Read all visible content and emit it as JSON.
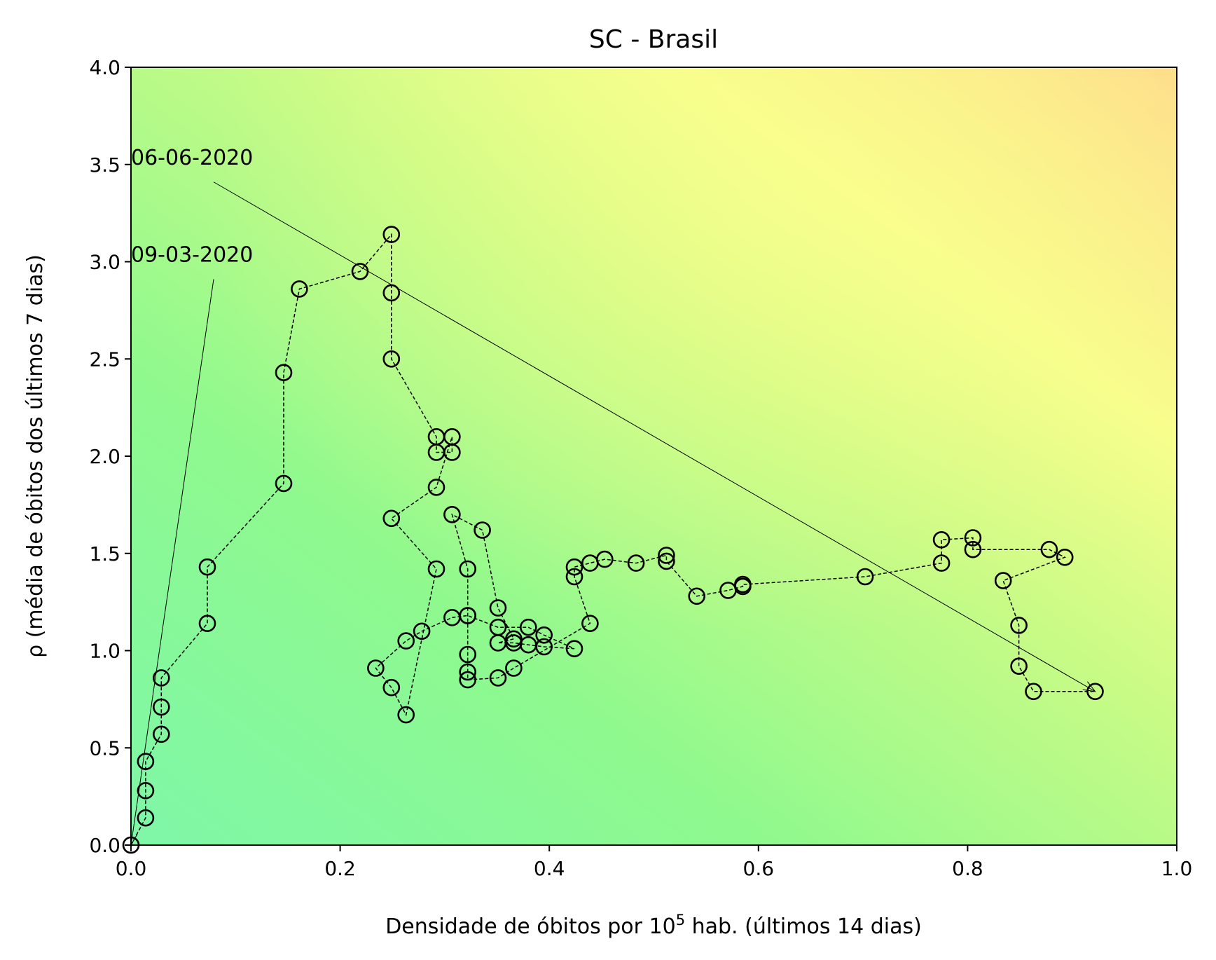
{
  "chart_data": {
    "type": "scatter",
    "title": "SC - Brasil",
    "xlabel_main": "Densidade de óbitos por 10",
    "xlabel_sup": "5",
    "xlabel_rest": " hab. (últimos 14 dias)",
    "ylabel": "ρ (média de óbitos dos últimos 7 dias)",
    "xlim": [
      0.0,
      1.0
    ],
    "ylim": [
      0.0,
      4.0
    ],
    "xticks": [
      0.0,
      0.2,
      0.4,
      0.6,
      0.8,
      1.0
    ],
    "xtick_labels": [
      "0.0",
      "0.2",
      "0.4",
      "0.6",
      "0.8",
      "1.0"
    ],
    "yticks": [
      0.0,
      0.5,
      1.0,
      1.5,
      2.0,
      2.5,
      3.0,
      3.5,
      4.0
    ],
    "ytick_labels": [
      "0.0",
      "0.5",
      "1.0",
      "1.5",
      "2.0",
      "2.5",
      "3.0",
      "3.5",
      "4.0"
    ],
    "grid": false,
    "background": "green-yellow-orange gradient (low values green, high values orange)",
    "series": [
      {
        "marker": "open circle",
        "line": "dashed",
        "color": "#000000",
        "points": [
          [
            0.0,
            0.0
          ],
          [
            0.014,
            0.14
          ],
          [
            0.014,
            0.28
          ],
          [
            0.014,
            0.43
          ],
          [
            0.029,
            0.57
          ],
          [
            0.029,
            0.71
          ],
          [
            0.029,
            0.86
          ],
          [
            0.073,
            1.14
          ],
          [
            0.073,
            1.43
          ],
          [
            0.146,
            1.86
          ],
          [
            0.146,
            2.43
          ],
          [
            0.161,
            2.86
          ],
          [
            0.219,
            2.95
          ],
          [
            0.249,
            3.14
          ],
          [
            0.249,
            2.84
          ],
          [
            0.249,
            2.5
          ],
          [
            0.292,
            2.1
          ],
          [
            0.292,
            2.02
          ],
          [
            0.307,
            2.02
          ],
          [
            0.307,
            2.1
          ],
          [
            0.292,
            1.84
          ],
          [
            0.249,
            1.68
          ],
          [
            0.292,
            1.42
          ],
          [
            0.263,
            0.67
          ],
          [
            0.249,
            0.81
          ],
          [
            0.234,
            0.91
          ],
          [
            0.263,
            1.05
          ],
          [
            0.278,
            1.1
          ],
          [
            0.307,
            1.17
          ],
          [
            0.322,
            1.18
          ],
          [
            0.351,
            1.12
          ],
          [
            0.38,
            1.12
          ],
          [
            0.395,
            1.08
          ],
          [
            0.424,
            1.01
          ],
          [
            0.395,
            1.02
          ],
          [
            0.38,
            1.03
          ],
          [
            0.366,
            1.04
          ],
          [
            0.351,
            1.04
          ],
          [
            0.366,
            1.06
          ],
          [
            0.351,
            1.22
          ],
          [
            0.336,
            1.62
          ],
          [
            0.307,
            1.7
          ],
          [
            0.322,
            1.42
          ],
          [
            0.322,
            1.18
          ],
          [
            0.322,
            0.98
          ],
          [
            0.322,
            0.89
          ],
          [
            0.322,
            0.85
          ],
          [
            0.351,
            0.86
          ],
          [
            0.366,
            0.91
          ],
          [
            0.439,
            1.14
          ],
          [
            0.424,
            1.38
          ],
          [
            0.424,
            1.43
          ],
          [
            0.439,
            1.45
          ],
          [
            0.453,
            1.47
          ],
          [
            0.483,
            1.45
          ],
          [
            0.512,
            1.49
          ],
          [
            0.512,
            1.46
          ],
          [
            0.541,
            1.28
          ],
          [
            0.571,
            1.31
          ],
          [
            0.585,
            1.33
          ],
          [
            0.585,
            1.34
          ],
          [
            0.702,
            1.38
          ],
          [
            0.775,
            1.45
          ],
          [
            0.775,
            1.57
          ],
          [
            0.805,
            1.58
          ],
          [
            0.805,
            1.52
          ],
          [
            0.878,
            1.52
          ],
          [
            0.893,
            1.48
          ],
          [
            0.834,
            1.36
          ],
          [
            0.849,
            1.13
          ],
          [
            0.849,
            0.92
          ],
          [
            0.863,
            0.79
          ],
          [
            0.922,
            0.79
          ]
        ]
      }
    ],
    "annotations": [
      {
        "text": "09-03-2020",
        "xy": [
          0.0,
          0.0
        ],
        "xytext": [
          0.0,
          3.0
        ]
      },
      {
        "text": "06-06-2020",
        "xy": [
          0.922,
          0.79
        ],
        "xytext": [
          0.0,
          3.5
        ]
      }
    ]
  }
}
